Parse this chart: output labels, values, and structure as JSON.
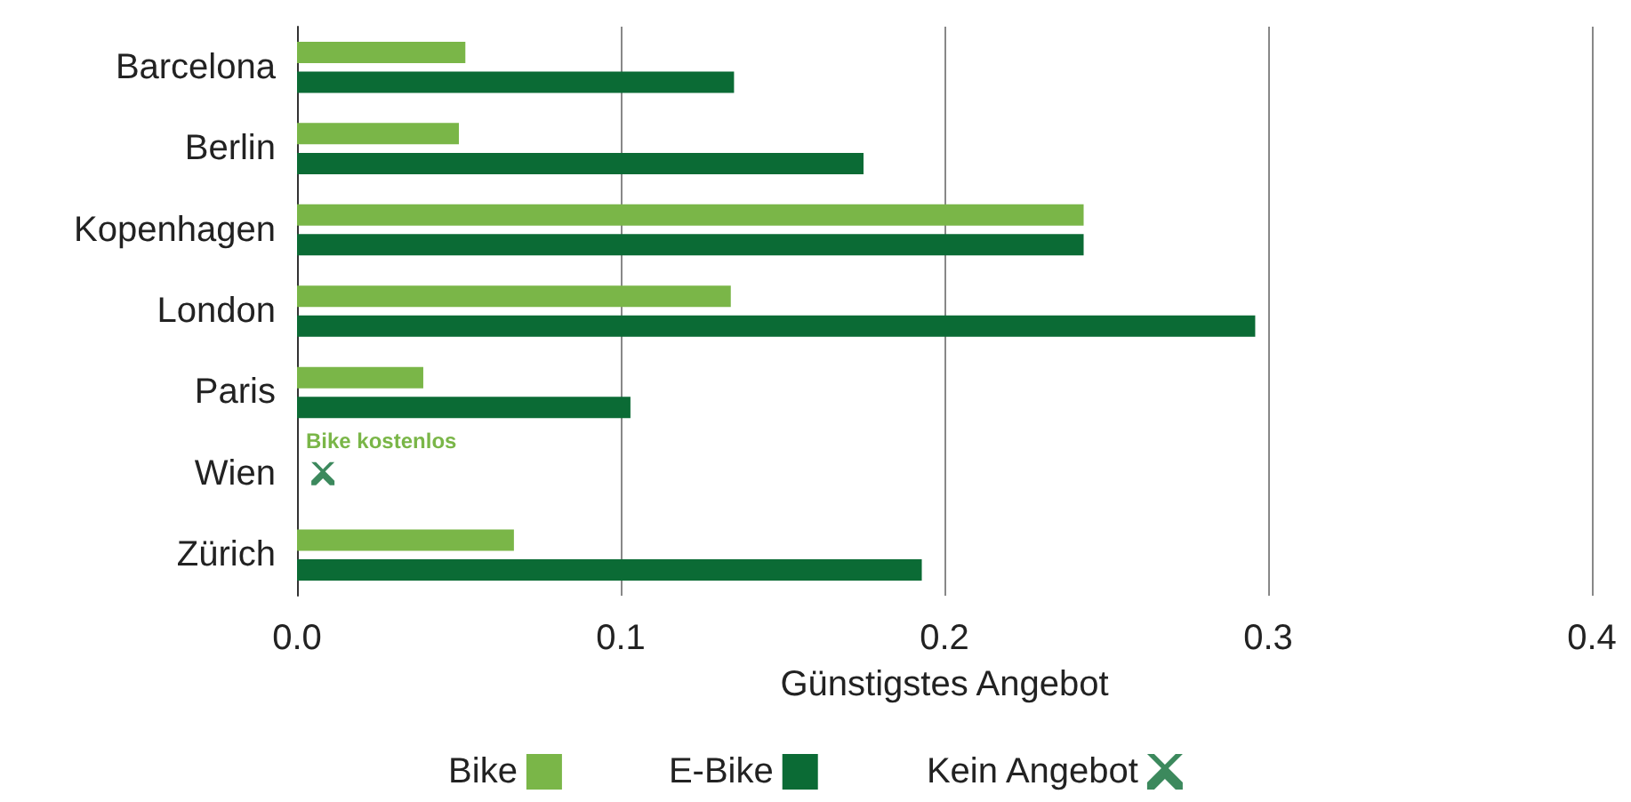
{
  "chart_data": {
    "type": "bar",
    "orientation": "horizontal",
    "xlabel": "Günstigstes Angebot",
    "categories": [
      "Barcelona",
      "Berlin",
      "Kopenhagen",
      "London",
      "Paris",
      "Wien",
      "Zürich"
    ],
    "series": [
      {
        "name": "Bike",
        "color": "#7ab648",
        "values": [
          0.052,
          0.05,
          0.243,
          0.134,
          0.039,
          0,
          0.067
        ]
      },
      {
        "name": "E-Bike",
        "color": "#0b6b35",
        "values": [
          0.135,
          0.175,
          0.243,
          0.296,
          0.103,
          null,
          0.193
        ]
      },
      {
        "name": "Kein Angebot",
        "type": "scatter",
        "marker": "cross",
        "color": "#0b6b35",
        "values": [
          null,
          null,
          null,
          null,
          null,
          0.008,
          null
        ]
      }
    ],
    "xlim": [
      0,
      0.4
    ],
    "xticks": [
      {
        "value": 0,
        "label": "0.0"
      },
      0.1,
      0.2,
      0.3,
      0.4
    ],
    "grid": "x",
    "legend": "bottom",
    "annotations": [
      {
        "text": "Bike kostenlos",
        "x": 0,
        "y": "Wien"
      }
    ]
  }
}
